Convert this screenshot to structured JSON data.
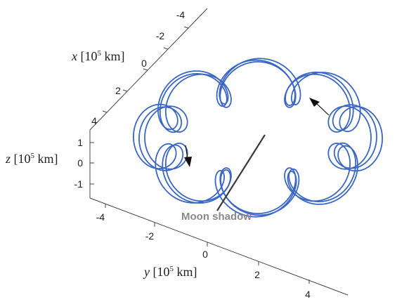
{
  "chart_data": {
    "type": "line",
    "title": "",
    "axes": {
      "x": {
        "label_var": "x",
        "label_unit_pre": " [10",
        "label_exp": "5",
        "label_unit_post": " km]",
        "range": [
          -4,
          4
        ],
        "ticks": [
          -4,
          -2,
          0,
          2,
          4
        ]
      },
      "y": {
        "label_var": "y",
        "label_unit_pre": " [10",
        "label_exp": "5",
        "label_unit_post": " km]",
        "range": [
          -4,
          4
        ],
        "ticks": [
          -4,
          -2,
          0,
          2,
          4
        ]
      },
      "z": {
        "label_var": "z",
        "label_unit_pre": " [10",
        "label_exp": "5",
        "label_unit_post": " km]",
        "range": [
          -1,
          1
        ],
        "ticks": [
          -1,
          0,
          1
        ]
      }
    },
    "series": [
      {
        "trajectory": "torus-wound orbit with looping epicycles",
        "num_loops": 9,
        "revolutions": 3,
        "color": "#3a66c4"
      }
    ],
    "annotations": [
      {
        "text": "Moon shadow"
      }
    ],
    "arrows": [
      "direction-of-motion-upper-right",
      "direction-of-motion-left"
    ],
    "box": false,
    "grid": false
  }
}
